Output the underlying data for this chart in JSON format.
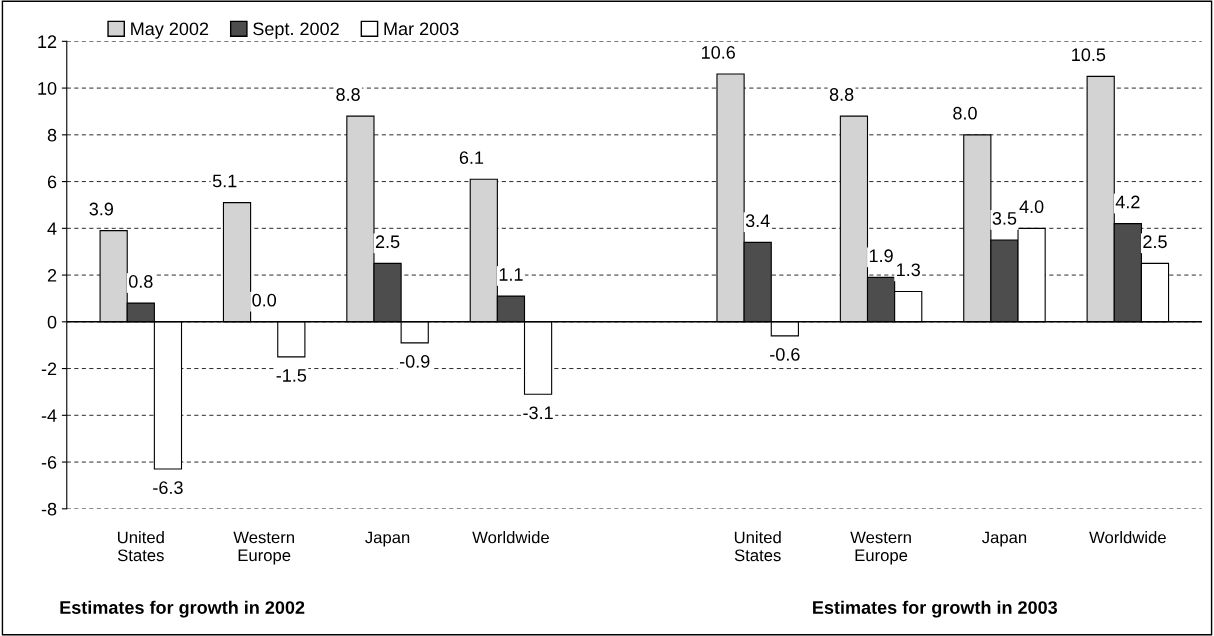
{
  "chart_data": {
    "type": "bar",
    "categories": [
      "United\nStates",
      "Western\nEurope",
      "Japan",
      "Worldwide",
      null,
      "United\nStates",
      "Western\nEurope",
      "Japan",
      "Worldwide"
    ],
    "series": [
      {
        "name": "May 2002",
        "color": "#d3d3d3",
        "values": [
          3.9,
          5.1,
          8.8,
          6.1,
          null,
          10.6,
          8.8,
          8.0,
          10.5
        ],
        "value_labels": [
          "3.9",
          "5.1",
          "8.8",
          "6.1",
          null,
          "10.6",
          "8.8",
          "8.0",
          "10.5"
        ]
      },
      {
        "name": "Sept. 2002",
        "color": "#4d4d4d",
        "values": [
          0.8,
          0.0,
          2.5,
          1.1,
          null,
          3.4,
          1.9,
          3.5,
          4.2
        ],
        "value_labels": [
          "0.8",
          "0.0",
          "2.5",
          "1.1",
          null,
          "3.4",
          "1.9",
          "3.5",
          "4.2"
        ]
      },
      {
        "name": "Mar 2003",
        "color": "#ffffff",
        "values": [
          -6.3,
          -1.5,
          -0.9,
          -3.1,
          null,
          -0.6,
          1.3,
          4.0,
          2.5
        ],
        "value_labels": [
          "-6.3",
          "-1.5",
          "-0.9",
          "-3.1",
          null,
          "-0.6",
          "1.3",
          "4.0",
          "2.5"
        ]
      }
    ],
    "ylim": [
      -8,
      12
    ],
    "yticks": [
      -8,
      -6,
      -4,
      -2,
      0,
      2,
      4,
      6,
      8,
      10,
      12
    ],
    "grid": "y",
    "legend": "top left",
    "annotations": [
      "Estimates for growth in 2002",
      "Estimates for growth in 2003"
    ]
  }
}
